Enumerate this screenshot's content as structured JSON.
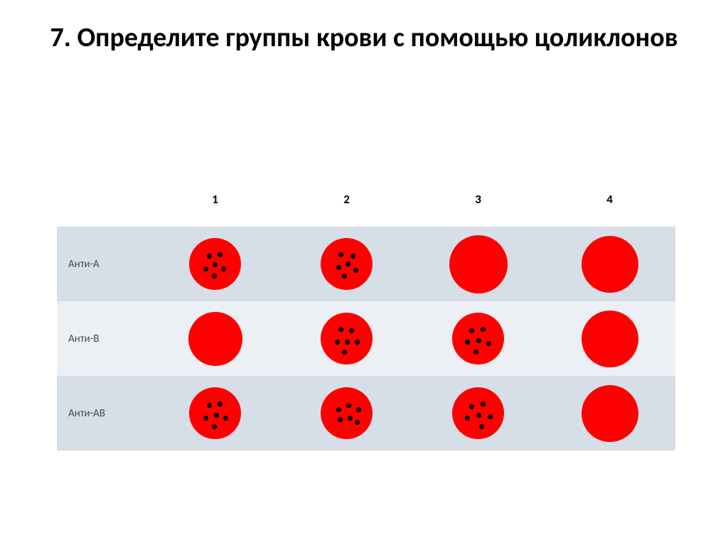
{
  "title": "7. Определите группы крови с помощью цоликлонов",
  "title_fontsize": 38,
  "columns": [
    "1",
    "2",
    "3",
    "4"
  ],
  "col_header_fontsize": 17,
  "rows": [
    {
      "label": "Анти-А",
      "bg": "#d6dfe7"
    },
    {
      "label": "Анти-В",
      "bg": "#eceff3"
    },
    {
      "label": "Анти-АВ",
      "bg": "#d6dfe7"
    }
  ],
  "row_label_fontsize": 15,
  "circle_color": "#ff0000",
  "dot_color": "#000000",
  "dot_size": 7,
  "cells": [
    [
      {
        "diameter": 73,
        "agglutination": true,
        "dots": [
          [
            25,
            22
          ],
          [
            40,
            20
          ],
          [
            20,
            40
          ],
          [
            33,
            34
          ],
          [
            45,
            40
          ],
          [
            32,
            50
          ]
        ]
      },
      {
        "diameter": 73,
        "agglutination": true,
        "dots": [
          [
            25,
            20
          ],
          [
            42,
            22
          ],
          [
            22,
            38
          ],
          [
            35,
            33
          ],
          [
            46,
            42
          ],
          [
            30,
            50
          ]
        ]
      },
      {
        "diameter": 82,
        "agglutination": false,
        "dots": []
      },
      {
        "diameter": 80,
        "agglutination": false,
        "dots": []
      }
    ],
    [
      {
        "diameter": 76,
        "agglutination": false,
        "dots": []
      },
      {
        "diameter": 73,
        "agglutination": true,
        "dots": [
          [
            25,
            20
          ],
          [
            40,
            22
          ],
          [
            20,
            38
          ],
          [
            34,
            38
          ],
          [
            48,
            38
          ],
          [
            30,
            52
          ]
        ]
      },
      {
        "diameter": 73,
        "agglutination": true,
        "dots": [
          [
            24,
            22
          ],
          [
            40,
            20
          ],
          [
            18,
            38
          ],
          [
            34,
            36
          ],
          [
            48,
            40
          ],
          [
            30,
            52
          ]
        ]
      },
      {
        "diameter": 80,
        "agglutination": false,
        "dots": []
      }
    ],
    [
      {
        "diameter": 73,
        "agglutination": true,
        "dots": [
          [
            25,
            22
          ],
          [
            40,
            20
          ],
          [
            20,
            40
          ],
          [
            35,
            36
          ],
          [
            48,
            40
          ],
          [
            32,
            52
          ]
        ]
      },
      {
        "diameter": 73,
        "agglutination": true,
        "dots": [
          [
            22,
            28
          ],
          [
            36,
            22
          ],
          [
            50,
            28
          ],
          [
            24,
            42
          ],
          [
            38,
            40
          ],
          [
            48,
            46
          ]
        ]
      },
      {
        "diameter": 73,
        "agglutination": true,
        "dots": [
          [
            24,
            24
          ],
          [
            40,
            20
          ],
          [
            18,
            40
          ],
          [
            34,
            36
          ],
          [
            50,
            38
          ],
          [
            38,
            52
          ]
        ]
      },
      {
        "diameter": 80,
        "agglutination": false,
        "dots": []
      }
    ]
  ]
}
